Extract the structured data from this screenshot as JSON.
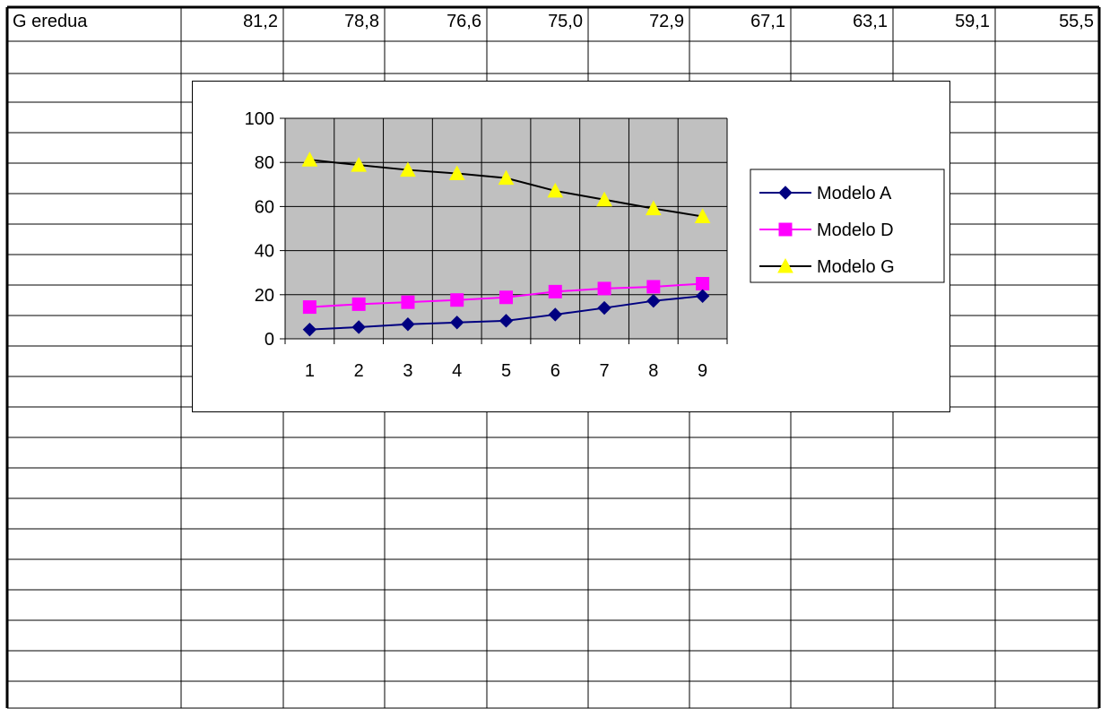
{
  "sheet": {
    "row_label": "G eredua",
    "row_values": [
      "81,2",
      "78,8",
      "76,6",
      "75,0",
      "72,9",
      "67,1",
      "63,1",
      "59,1",
      "55,5"
    ]
  },
  "chart_data": {
    "type": "line",
    "x": [
      1,
      2,
      3,
      4,
      5,
      6,
      7,
      8,
      9
    ],
    "x_tick_labels": [
      "1",
      "2",
      "3",
      "4",
      "5",
      "6",
      "7",
      "8",
      "9"
    ],
    "ylim": [
      0,
      100
    ],
    "y_ticks": [
      0,
      20,
      40,
      60,
      80,
      100
    ],
    "y_tick_labels": [
      "0",
      "20",
      "40",
      "60",
      "80",
      "100"
    ],
    "grid": true,
    "plot_background": "#c0c0c0",
    "legend_position": "right",
    "series": [
      {
        "name": "Modelo A",
        "color": "#000080",
        "marker": "diamond",
        "line_color": "#000080",
        "values": [
          4.2,
          5.3,
          6.6,
          7.4,
          8.2,
          11.0,
          14.0,
          17.2,
          19.4
        ]
      },
      {
        "name": "Modelo D",
        "color": "#ff00ff",
        "marker": "square",
        "line_color": "#ff00ff",
        "values": [
          14.4,
          15.7,
          16.6,
          17.6,
          18.8,
          21.4,
          22.8,
          23.6,
          25.0
        ]
      },
      {
        "name": "Modelo G",
        "color": "#ffff00",
        "marker": "triangle",
        "line_color": "#000000",
        "values": [
          81.2,
          78.8,
          76.6,
          75.0,
          72.9,
          67.1,
          63.1,
          59.1,
          55.5
        ]
      }
    ]
  }
}
